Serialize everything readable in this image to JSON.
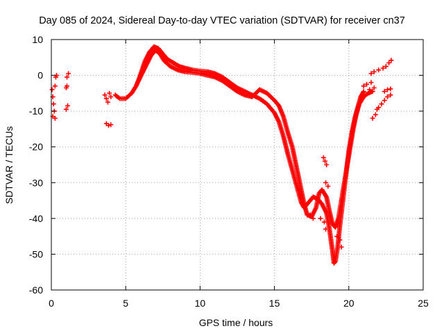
{
  "chart_data": {
    "type": "scatter",
    "title": "Day 085 of 2024, Sidereal Day-to-day VTEC variation (SDTVAR) for receiver cn37",
    "xlabel": "GPS time / hours",
    "ylabel": "SDTVAR / TECUs",
    "xlim": [
      0,
      25
    ],
    "ylim": [
      -60,
      10
    ],
    "xticks": [
      0,
      5,
      10,
      15,
      20,
      25
    ],
    "yticks": [
      -60,
      -50,
      -40,
      -30,
      -20,
      -10,
      0,
      10
    ],
    "grid": true,
    "marker": "+",
    "series": [
      {
        "name": "main trace",
        "color": "#ff0000",
        "points": [
          [
            4.3,
            -5.5
          ],
          [
            4.6,
            -6.5
          ],
          [
            5.0,
            -6.5
          ],
          [
            5.4,
            -5.0
          ],
          [
            5.7,
            -3.0
          ],
          [
            5.9,
            -1.0
          ],
          [
            6.1,
            1.5
          ],
          [
            6.3,
            4.0
          ],
          [
            6.6,
            6.5
          ],
          [
            6.9,
            8.0
          ],
          [
            7.2,
            7.5
          ],
          [
            7.5,
            6.0
          ],
          [
            7.8,
            4.5
          ],
          [
            8.2,
            3.5
          ],
          [
            8.6,
            2.5
          ],
          [
            9.0,
            2.0
          ],
          [
            9.5,
            1.5
          ],
          [
            10.0,
            1.2
          ],
          [
            10.5,
            1.0
          ],
          [
            11.0,
            0.5
          ],
          [
            11.5,
            -0.5
          ],
          [
            12.0,
            -2.0
          ],
          [
            12.5,
            -3.5
          ],
          [
            13.0,
            -4.5
          ],
          [
            13.5,
            -5.5
          ],
          [
            14.0,
            -6.5
          ],
          [
            14.5,
            -8.0
          ],
          [
            15.0,
            -10.5
          ],
          [
            15.3,
            -13.0
          ],
          [
            15.6,
            -17.0
          ],
          [
            15.9,
            -22.0
          ],
          [
            16.2,
            -26.5
          ],
          [
            16.5,
            -31.0
          ],
          [
            16.8,
            -35.5
          ],
          [
            17.0,
            -37.0
          ],
          [
            17.3,
            -35.5
          ],
          [
            17.6,
            -34.0
          ],
          [
            17.9,
            -34.5
          ],
          [
            18.2,
            -36.0
          ],
          [
            18.5,
            -38.5
          ],
          [
            18.7,
            -43.0
          ],
          [
            18.9,
            -49.0
          ],
          [
            19.0,
            -52.5
          ],
          [
            19.1,
            -52.0
          ],
          [
            19.25,
            -48.0
          ],
          [
            19.4,
            -42.0
          ],
          [
            19.6,
            -35.0
          ],
          [
            19.8,
            -28.0
          ],
          [
            20.0,
            -21.0
          ],
          [
            20.2,
            -16.0
          ],
          [
            20.4,
            -12.0
          ],
          [
            20.6,
            -9.0
          ],
          [
            20.8,
            -6.0
          ],
          [
            21.0,
            -4.5
          ]
        ]
      },
      {
        "name": "secondary trace",
        "color": "#ff0000",
        "points": [
          [
            5.8,
            -2.0
          ],
          [
            6.1,
            0.5
          ],
          [
            6.4,
            3.0
          ],
          [
            6.7,
            5.5
          ],
          [
            7.0,
            7.0
          ],
          [
            7.3,
            6.0
          ],
          [
            7.6,
            4.0
          ],
          [
            8.0,
            2.5
          ],
          [
            8.5,
            1.5
          ],
          [
            9.0,
            1.0
          ],
          [
            9.5,
            0.8
          ],
          [
            10.0,
            0.5
          ],
          [
            11.0,
            -0.5
          ],
          [
            11.5,
            -1.5
          ],
          [
            12.0,
            -3.0
          ],
          [
            12.5,
            -4.5
          ],
          [
            13.0,
            -5.5
          ],
          [
            13.5,
            -6.0
          ],
          [
            14.0,
            -4.0
          ],
          [
            14.5,
            -5.0
          ],
          [
            15.0,
            -7.0
          ],
          [
            15.3,
            -8.5
          ],
          [
            15.6,
            -11.5
          ],
          [
            15.9,
            -16.0
          ],
          [
            16.2,
            -20.0
          ],
          [
            16.5,
            -26.0
          ],
          [
            16.8,
            -32.0
          ],
          [
            17.0,
            -36.0
          ],
          [
            17.2,
            -39.0
          ],
          [
            17.5,
            -39.5
          ],
          [
            17.8,
            -37.0
          ],
          [
            18.0,
            -33.0
          ],
          [
            18.2,
            -32.0
          ],
          [
            18.5,
            -34.0
          ],
          [
            18.7,
            -38.0
          ],
          [
            18.9,
            -41.5
          ],
          [
            19.1,
            -42.5
          ],
          [
            19.3,
            -40.0
          ],
          [
            19.5,
            -35.0
          ],
          [
            19.7,
            -30.0
          ],
          [
            19.9,
            -25.0
          ],
          [
            20.1,
            -20.0
          ],
          [
            20.3,
            -15.0
          ],
          [
            20.5,
            -11.0
          ],
          [
            20.7,
            -8.0
          ],
          [
            21.0,
            -6.0
          ],
          [
            21.3,
            -5.0
          ],
          [
            21.6,
            -4.5
          ]
        ]
      },
      {
        "name": "isolated points",
        "color": "#ff0000",
        "points": [
          [
            0.05,
            -4.0
          ],
          [
            0.1,
            -6.0
          ],
          [
            0.15,
            -8.0
          ],
          [
            0.2,
            -10.0
          ],
          [
            0.25,
            -3.0
          ],
          [
            0.1,
            -11.5
          ],
          [
            0.25,
            -12.0
          ],
          [
            0.3,
            -0.5
          ],
          [
            0.35,
            0.0
          ],
          [
            1.0,
            -3.5
          ],
          [
            1.05,
            -3.0
          ],
          [
            1.0,
            -9.5
          ],
          [
            1.1,
            -8.5
          ],
          [
            1.05,
            -0.5
          ],
          [
            1.15,
            0.5
          ],
          [
            3.6,
            -5.5
          ],
          [
            3.7,
            -6.5
          ],
          [
            3.8,
            -7.5
          ],
          [
            3.9,
            -5.0
          ],
          [
            4.0,
            -6.0
          ],
          [
            3.7,
            -13.5
          ],
          [
            3.85,
            -14.0
          ],
          [
            4.0,
            -13.8
          ],
          [
            18.3,
            -23.0
          ],
          [
            18.4,
            -24.0
          ],
          [
            18.5,
            -25.0
          ],
          [
            18.45,
            -30.0
          ],
          [
            18.6,
            -31.0
          ],
          [
            18.1,
            -40.0
          ],
          [
            18.35,
            -41.0
          ],
          [
            18.45,
            -43.0
          ],
          [
            17.4,
            -39.0
          ],
          [
            17.6,
            -40.0
          ],
          [
            19.2,
            -45.0
          ],
          [
            19.4,
            -46.0
          ],
          [
            19.5,
            -48.0
          ],
          [
            21.0,
            -3.0
          ],
          [
            21.2,
            -2.5
          ],
          [
            21.4,
            -4.0
          ],
          [
            21.5,
            -2.0
          ],
          [
            21.7,
            -3.5
          ],
          [
            21.6,
            -12.0
          ],
          [
            21.8,
            -11.0
          ],
          [
            21.9,
            -9.5
          ],
          [
            22.0,
            -9.0
          ],
          [
            22.2,
            -8.0
          ],
          [
            22.4,
            -7.0
          ],
          [
            22.6,
            -6.0
          ],
          [
            22.8,
            -5.5
          ],
          [
            21.5,
            0.5
          ],
          [
            21.7,
            1.0
          ],
          [
            22.0,
            1.5
          ],
          [
            22.3,
            2.0
          ],
          [
            22.5,
            2.5
          ],
          [
            22.7,
            3.5
          ],
          [
            22.85,
            4.2
          ],
          [
            22.4,
            -4.5
          ],
          [
            22.6,
            -4.0
          ],
          [
            22.8,
            -3.8
          ]
        ]
      }
    ]
  }
}
